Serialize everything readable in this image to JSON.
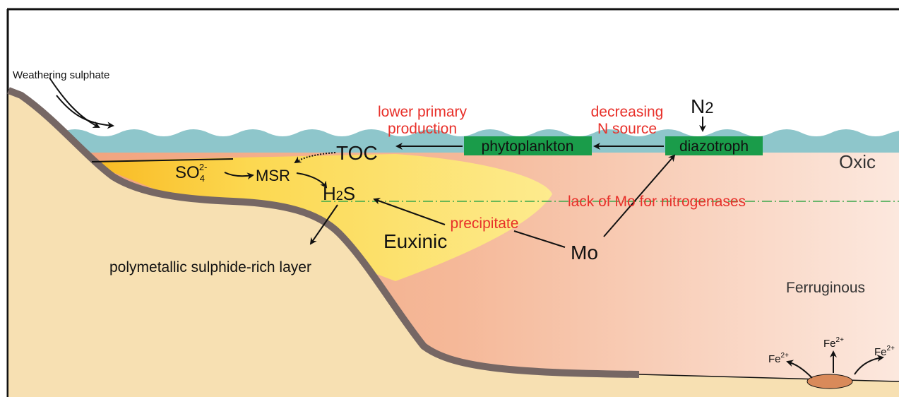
{
  "inflow": {
    "label": "Weathering sulphate"
  },
  "annotations": {
    "production": [
      "lower primary",
      "production"
    ],
    "nitrogen": [
      "decreasing",
      "N source"
    ],
    "molybdenum": "lack of Mo for nitrogenases",
    "precipitate": "precipitate"
  },
  "nodes": [
    {
      "label": "phytoplankton"
    },
    {
      "label": "diazotroph"
    },
    {
      "label": "TOC"
    },
    {
      "label": "MSR"
    },
    {
      "label": "Mo"
    }
  ],
  "species": {
    "n2": {
      "symbol": "N",
      "subscript": "2"
    },
    "sulphate": {
      "symbol": "SO",
      "subscript": "4",
      "charge": "2-"
    },
    "h2s": {
      "symbol": "H",
      "subscript": "2",
      "tail": "S"
    },
    "iron": [
      {
        "symbol": "Fe",
        "charge": "2+"
      },
      {
        "symbol": "Fe",
        "charge": "2+"
      },
      {
        "symbol": "Fe",
        "charge": "2+"
      }
    ]
  },
  "zones": {
    "oxic": "Oxic",
    "euxinic": "Euxinic",
    "ferruginous": "Ferruginous",
    "layer": "polymetallic sulphide-rich layer"
  }
}
